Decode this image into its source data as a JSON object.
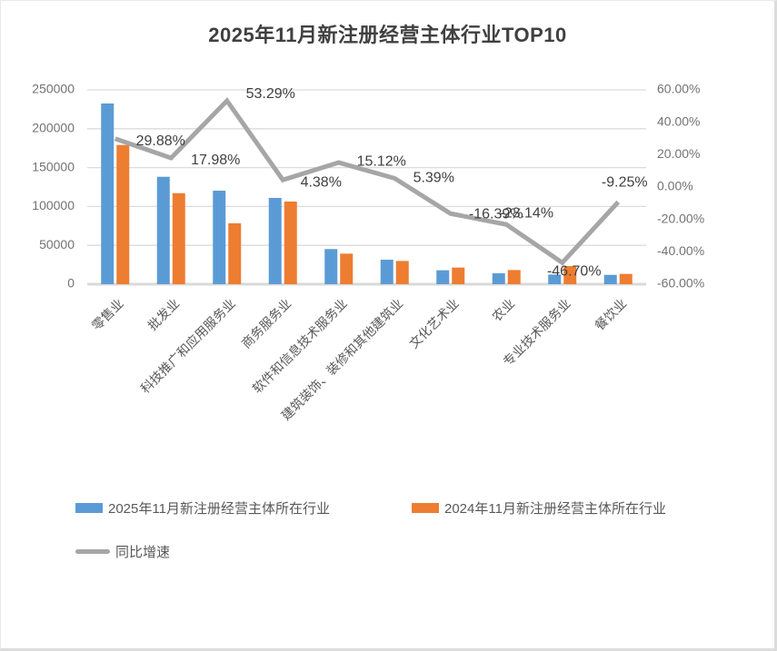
{
  "title": "2025年11月新注册经营主体行业TOP10",
  "chart_data": {
    "type": "bar",
    "subtype": "grouped-bar-with-line-overlay",
    "categories": [
      "零售业",
      "批发业",
      "科技推广和应用服务业",
      "商务服务业",
      "软件和信息技术服务业",
      "建筑装饰、装修和其他建筑业",
      "文化艺术业",
      "农业",
      "专业技术服务业",
      "餐饮业"
    ],
    "series": [
      {
        "name": "2025年11月新注册经营主体所在行业",
        "type": "bar",
        "color": "#5B9BD5",
        "axis": "left",
        "values": [
          232500,
          138200,
          120300,
          111000,
          45200,
          31500,
          17900,
          14000,
          12400,
          12000
        ]
      },
      {
        "name": "2024年11月新注册经营主体所在行业",
        "type": "bar",
        "color": "#ED7D31",
        "axis": "left",
        "values": [
          179100,
          117100,
          78400,
          106300,
          39300,
          29900,
          21400,
          18200,
          23300,
          13200
        ]
      },
      {
        "name": "同比增速",
        "type": "line",
        "color": "#A6A6A6",
        "axis": "right",
        "values": [
          29.88,
          17.98,
          53.29,
          4.38,
          15.12,
          5.39,
          -16.39,
          -23.14,
          -46.7,
          -9.25
        ],
        "labels": [
          "29.88%",
          "17.98%",
          "53.29%",
          "4.38%",
          "15.12%",
          "5.39%",
          "-16.39%",
          "-23.14%",
          "-46.70%",
          "-9.25%"
        ]
      }
    ],
    "left_axis": {
      "min": 0,
      "max": 250000,
      "step": 50000,
      "ticks": [
        "250000",
        "200000",
        "150000",
        "100000",
        "50000",
        "0"
      ]
    },
    "right_axis": {
      "min": -60,
      "max": 60,
      "step": 20,
      "ticks": [
        "60.00%",
        "40.00%",
        "20.00%",
        "0.00%",
        "-20.00%",
        "-40.00%",
        "-60.00%"
      ]
    },
    "grid": true,
    "legend_position": "bottom-left",
    "colors": {
      "grid": "#DCDCDC",
      "baseline": "#D9D9D9",
      "axis_text": "#737373",
      "category_text": "#595959",
      "data_label_text": "#404040",
      "title_text": "#404040"
    }
  }
}
